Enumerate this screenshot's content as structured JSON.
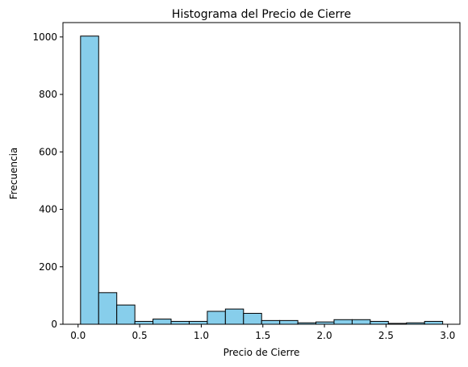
{
  "chart_data": {
    "type": "bar",
    "subtype": "histogram",
    "title": "Histograma del Precio de Cierre",
    "xlabel": "Precio de Cierre",
    "ylabel": "Frecuencia",
    "xlim": [
      -0.123,
      3.1
    ],
    "ylim": [
      0,
      1050
    ],
    "xticks": [
      0.0,
      0.5,
      1.0,
      1.5,
      2.0,
      2.5,
      3.0
    ],
    "xtick_labels": [
      "0.0",
      "0.5",
      "1.0",
      "1.5",
      "2.0",
      "2.5",
      "3.0"
    ],
    "yticks": [
      0,
      200,
      400,
      600,
      800,
      1000
    ],
    "ytick_labels": [
      "0",
      "200",
      "400",
      "600",
      "800",
      "1000"
    ],
    "bin_edges": [
      0.02,
      0.167,
      0.314,
      0.461,
      0.608,
      0.755,
      0.902,
      1.049,
      1.196,
      1.343,
      1.49,
      1.637,
      1.784,
      1.931,
      2.078,
      2.225,
      2.372,
      2.519,
      2.666,
      2.813,
      2.96
    ],
    "counts": [
      1003,
      110,
      67,
      10,
      18,
      10,
      10,
      45,
      53,
      38,
      13,
      13,
      5,
      8,
      16,
      16,
      10,
      3,
      5,
      10
    ],
    "bar_color": "#87CEEB",
    "edge_color": "#000000",
    "grid": false,
    "legend": false
  }
}
